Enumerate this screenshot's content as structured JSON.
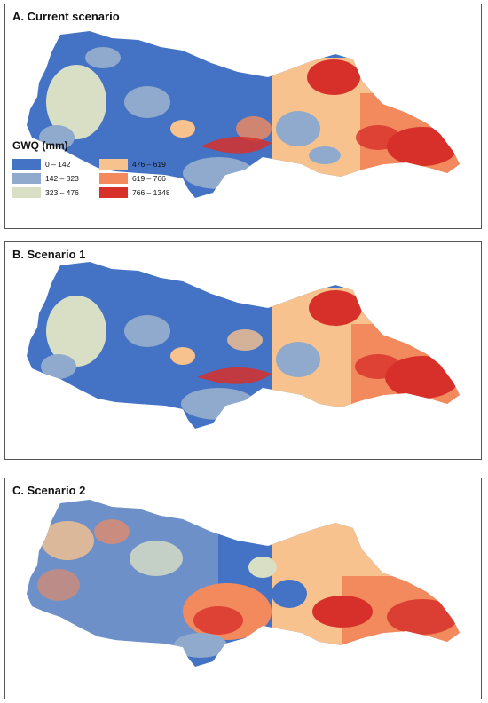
{
  "panels": [
    {
      "title": "A. Current scenario"
    },
    {
      "title": "B. Scenario 1"
    },
    {
      "title": "C. Scenario 2"
    }
  ],
  "legend": {
    "title": "GWQ (mm)",
    "items": [
      {
        "label": "0 – 142",
        "color": "#4472C4"
      },
      {
        "label": "142 – 323",
        "color": "#8FAACC"
      },
      {
        "label": "323 – 476",
        "color": "#D9DFC4"
      },
      {
        "label": "476 – 619",
        "color": "#F7C28E"
      },
      {
        "label": "619 – 766",
        "color": "#F28A5E"
      },
      {
        "label": "766 – 1348",
        "color": "#D7302A"
      }
    ]
  }
}
